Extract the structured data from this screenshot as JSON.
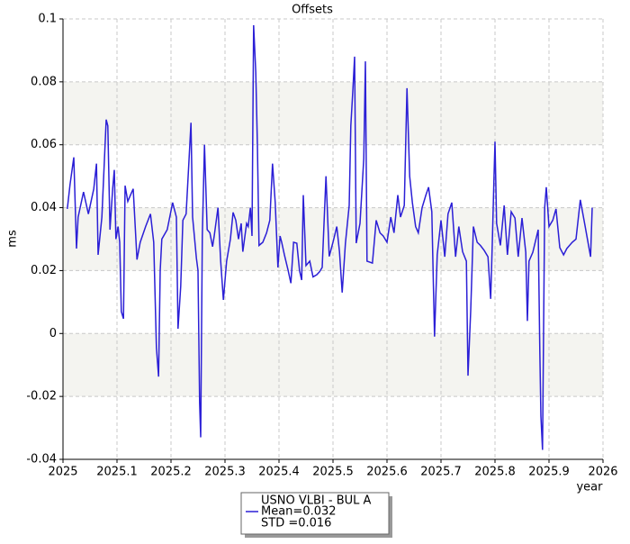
{
  "chart_data": {
    "type": "line",
    "title": "Offsets",
    "x_label": "year",
    "y_label": "ms",
    "x": [
      2025.008,
      2025.013,
      2025.02,
      2025.025,
      2025.028,
      2025.038,
      2025.047,
      2025.057,
      2025.062,
      2025.065,
      2025.072,
      2025.08,
      2025.083,
      2025.087,
      2025.092,
      2025.095,
      2025.098,
      2025.102,
      2025.105,
      2025.108,
      2025.112,
      2025.115,
      2025.12,
      2025.125,
      2025.13,
      2025.137,
      2025.143,
      2025.153,
      2025.162,
      2025.168,
      2025.173,
      2025.177,
      2025.18,
      2025.183,
      2025.193,
      2025.203,
      2025.21,
      2025.213,
      2025.218,
      2025.222,
      2025.228,
      2025.233,
      2025.237,
      2025.24,
      2025.247,
      2025.25,
      2025.253,
      2025.255,
      2025.258,
      2025.262,
      2025.267,
      2025.272,
      2025.277,
      2025.28,
      2025.287,
      2025.292,
      2025.297,
      2025.303,
      2025.31,
      2025.315,
      2025.32,
      2025.325,
      2025.33,
      2025.333,
      2025.34,
      2025.343,
      2025.347,
      2025.35,
      2025.353,
      2025.357,
      2025.36,
      2025.363,
      2025.37,
      2025.377,
      2025.383,
      2025.388,
      2025.393,
      2025.398,
      2025.402,
      2025.405,
      2025.41,
      2025.417,
      2025.422,
      2025.427,
      2025.433,
      2025.438,
      2025.442,
      2025.445,
      2025.45,
      2025.457,
      2025.463,
      2025.47,
      2025.475,
      2025.48,
      2025.487,
      2025.493,
      2025.5,
      2025.507,
      2025.512,
      2025.517,
      2025.523,
      2025.53,
      2025.533,
      2025.537,
      2025.54,
      2025.543,
      2025.55,
      2025.557,
      2025.56,
      2025.563,
      2025.573,
      2025.58,
      2025.587,
      2025.593,
      2025.6,
      2025.607,
      2025.613,
      2025.62,
      2025.625,
      2025.632,
      2025.637,
      2025.642,
      2025.647,
      2025.653,
      2025.658,
      2025.665,
      2025.672,
      2025.677,
      2025.683,
      2025.688,
      2025.693,
      2025.7,
      2025.707,
      2025.713,
      2025.72,
      2025.727,
      2025.733,
      2025.74,
      2025.747,
      2025.75,
      2025.755,
      2025.76,
      2025.767,
      2025.773,
      2025.78,
      2025.787,
      2025.792,
      2025.795,
      2025.798,
      2025.8,
      2025.803,
      2025.81,
      2025.817,
      2025.823,
      2025.83,
      2025.837,
      2025.843,
      2025.85,
      2025.857,
      2025.86,
      2025.863,
      2025.87,
      2025.88,
      2025.883,
      2025.885,
      2025.888,
      2025.892,
      2025.895,
      2025.9,
      2025.907,
      2025.913,
      2025.92,
      2025.927,
      2025.933,
      2025.943,
      2025.95,
      2025.958,
      2025.967,
      2025.977,
      2025.98
    ],
    "series": [
      {
        "name": "USNO VLBI - BUL A",
        "color": "#2b1fd6",
        "values": [
          0.0396,
          0.0473,
          0.056,
          0.027,
          0.037,
          0.045,
          0.038,
          0.046,
          0.054,
          0.025,
          0.037,
          0.068,
          0.066,
          0.033,
          0.046,
          0.052,
          0.03,
          0.034,
          0.029,
          0.007,
          0.0047,
          0.047,
          0.042,
          0.044,
          0.046,
          0.0235,
          0.029,
          0.034,
          0.038,
          0.029,
          -0.0045,
          -0.0137,
          0.02,
          0.03,
          0.033,
          0.0416,
          0.037,
          0.0015,
          0.015,
          0.036,
          0.038,
          0.054,
          0.067,
          0.037,
          0.024,
          0.02,
          -0.022,
          -0.033,
          0.031,
          0.06,
          0.033,
          0.032,
          0.0276,
          0.031,
          0.04,
          0.023,
          0.0107,
          0.023,
          0.03,
          0.0385,
          0.036,
          0.03,
          0.035,
          0.026,
          0.035,
          0.034,
          0.04,
          0.031,
          0.098,
          0.083,
          0.06,
          0.028,
          0.029,
          0.032,
          0.036,
          0.054,
          0.0416,
          0.021,
          0.031,
          0.029,
          0.025,
          0.02,
          0.016,
          0.029,
          0.0287,
          0.02,
          0.017,
          0.044,
          0.0216,
          0.023,
          0.018,
          0.0187,
          0.0196,
          0.021,
          0.05,
          0.0245,
          0.029,
          0.034,
          0.026,
          0.013,
          0.0287,
          0.0407,
          0.066,
          0.078,
          0.088,
          0.0287,
          0.035,
          0.0556,
          0.0865,
          0.023,
          0.0224,
          0.036,
          0.032,
          0.031,
          0.029,
          0.037,
          0.032,
          0.044,
          0.037,
          0.0407,
          0.078,
          0.05,
          0.0416,
          0.034,
          0.032,
          0.04,
          0.044,
          0.0465,
          0.0387,
          -0.001,
          0.025,
          0.036,
          0.0244,
          0.038,
          0.0416,
          0.0244,
          0.034,
          0.026,
          0.023,
          -0.0134,
          0.0072,
          0.034,
          0.029,
          0.028,
          0.0264,
          0.0244,
          0.011,
          0.0287,
          0.0487,
          0.061,
          0.035,
          0.028,
          0.0407,
          0.025,
          0.0387,
          0.0367,
          0.0244,
          0.0367,
          0.0258,
          0.004,
          0.023,
          0.0258,
          0.033,
          -0.0056,
          -0.0263,
          -0.037,
          0.04,
          0.0465,
          0.034,
          0.036,
          0.0396,
          0.0273,
          0.025,
          0.027,
          0.029,
          0.03,
          0.0425,
          0.034,
          0.0244,
          0.04
        ]
      }
    ],
    "legend_lines": [
      "Mean=0.032",
      "STD =0.016"
    ],
    "xlim": [
      2025,
      2026
    ],
    "xticks": [
      2025,
      2025.1,
      2025.2,
      2025.3,
      2025.4,
      2025.5,
      2025.6,
      2025.7,
      2025.8,
      2025.9,
      2026
    ],
    "ylim": [
      -0.04,
      0.1
    ],
    "yticks": [
      0.1,
      0.08,
      0.06,
      0.04,
      0.02,
      0,
      -0.02,
      -0.04
    ],
    "grid": true,
    "alternate_bands": true
  }
}
